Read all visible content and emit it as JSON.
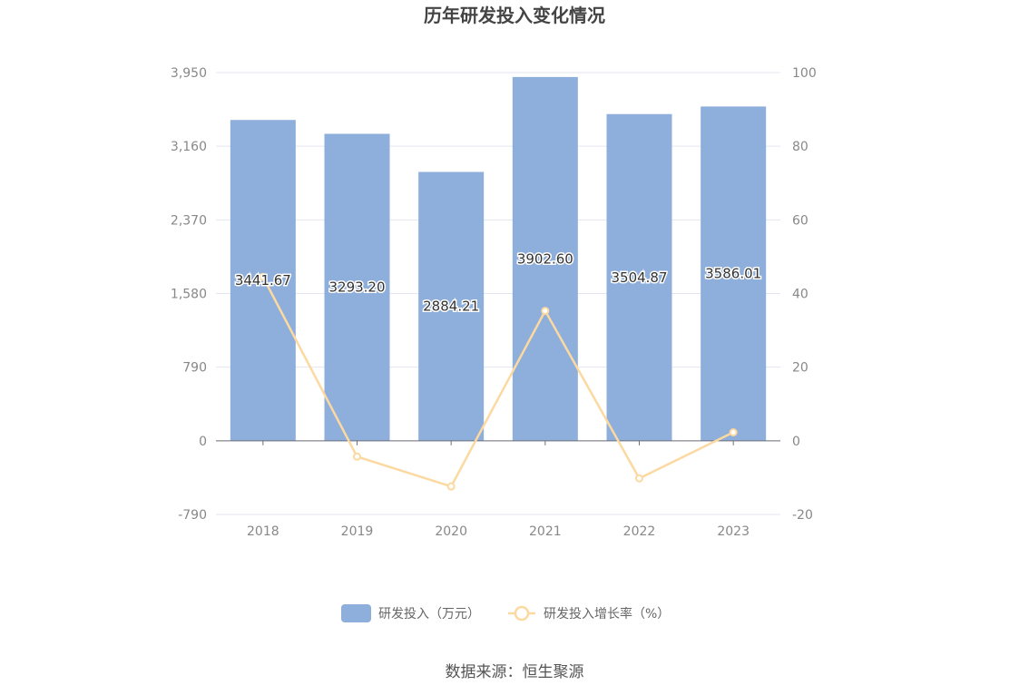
{
  "title": "历年研发投入变化情况",
  "source": "数据来源：恒生聚源",
  "chart_data": {
    "type": "bar",
    "categories": [
      "2018",
      "2019",
      "2020",
      "2021",
      "2022",
      "2023"
    ],
    "series": [
      {
        "name": "研发投入（万元）",
        "type": "bar",
        "axis": "left",
        "color": "#8eaedb",
        "values": [
          3441.67,
          3293.2,
          2884.21,
          3902.6,
          3504.87,
          3586.01
        ],
        "labels": [
          "3441.67",
          "3293.20",
          "2884.21",
          "3902.60",
          "3504.87",
          "3586.01"
        ]
      },
      {
        "name": "研发投入增长率（%）",
        "type": "line",
        "axis": "right",
        "color": "#fbd9a0",
        "values": [
          44.5,
          -4.3,
          -12.4,
          35.3,
          -10.2,
          2.3
        ]
      }
    ],
    "y_left": {
      "min": -790,
      "max": 3950,
      "ticks": [
        "3,950",
        "3,160",
        "2,370",
        "1,580",
        "790",
        "0",
        "-790"
      ]
    },
    "y_right": {
      "min": -20,
      "max": 100,
      "ticks": [
        "100",
        "80",
        "60",
        "40",
        "20",
        "0",
        "-20"
      ]
    },
    "grid": true,
    "legend_position": "bottom"
  }
}
